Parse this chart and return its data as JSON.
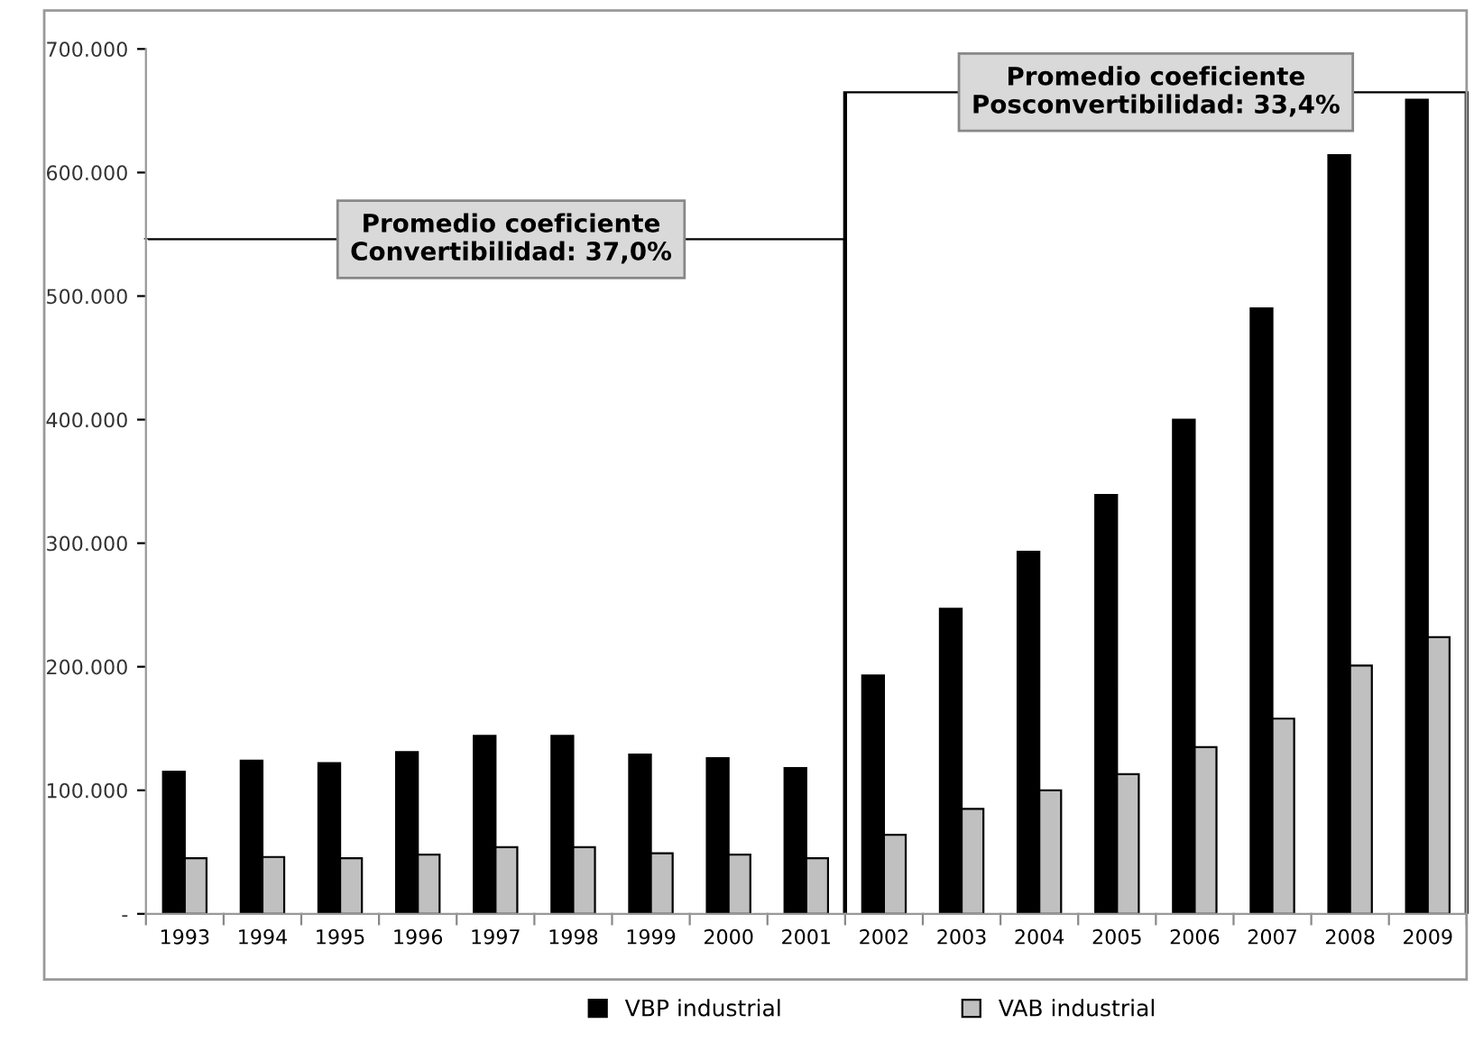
{
  "chart_data": {
    "type": "bar",
    "categories": [
      "1993",
      "1994",
      "1995",
      "1996",
      "1997",
      "1998",
      "1999",
      "2000",
      "2001",
      "2002",
      "2003",
      "2004",
      "2005",
      "2006",
      "2007",
      "2008",
      "2009"
    ],
    "series": [
      {
        "name": "VBP industrial",
        "color": "#000000",
        "values": [
          115000,
          124000,
          122000,
          131000,
          144000,
          144000,
          129000,
          126000,
          118000,
          193000,
          247000,
          293000,
          339000,
          400000,
          490000,
          614000,
          659000
        ]
      },
      {
        "name": "VAB industrial",
        "color": "#c0c0c0",
        "values": [
          45000,
          46000,
          45000,
          48000,
          54000,
          54000,
          49000,
          48000,
          45000,
          64000,
          85000,
          100000,
          113000,
          135000,
          158000,
          201000,
          224000
        ]
      }
    ],
    "ylim": [
      0,
      700000
    ],
    "yticks": [
      {
        "value": 0,
        "label": "-"
      },
      {
        "value": 100000,
        "label": "100.000"
      },
      {
        "value": 200000,
        "label": "200.000"
      },
      {
        "value": 300000,
        "label": "300.000"
      },
      {
        "value": 400000,
        "label": "400.000"
      },
      {
        "value": 500000,
        "label": "500.000"
      },
      {
        "value": 600000,
        "label": "600.000"
      },
      {
        "value": 700000,
        "label": "700.000"
      }
    ],
    "annotations": [
      "Promedio coeficiente\nConvertibilidad: 37,0%",
      "Promedio coeficiente\nPosconvertibilidad: 33,4%"
    ],
    "grid": false,
    "legend": "bottom"
  }
}
